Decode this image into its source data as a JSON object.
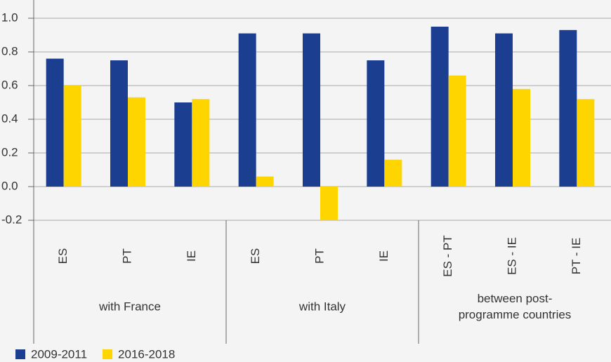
{
  "chart_data": {
    "type": "bar",
    "categories": [
      "ES",
      "PT",
      "IE",
      "ES",
      "PT",
      "IE",
      "ES - PT",
      "ES - IE",
      "PT - IE"
    ],
    "groups": [
      "with France",
      "with Italy",
      "between post-programme countries"
    ],
    "series": [
      {
        "name": "2009-2011",
        "color": "#1b3e91",
        "values": [
          0.76,
          0.75,
          0.5,
          0.91,
          0.91,
          0.75,
          0.95,
          0.91,
          0.93
        ]
      },
      {
        "name": "2016-2018",
        "color": "#ffd500",
        "values": [
          0.6,
          0.53,
          0.52,
          0.06,
          -0.2,
          0.16,
          0.66,
          0.58,
          0.52
        ]
      }
    ],
    "ylim": [
      -0.2,
      1.0
    ],
    "yticks": [
      {
        "value": 1.0,
        "label": "1.0"
      },
      0.8,
      0.6,
      0.4,
      0.2,
      {
        "value": 0.0,
        "label": "0.0"
      },
      -0.2
    ],
    "grid": true,
    "legend": "bottom-left"
  }
}
